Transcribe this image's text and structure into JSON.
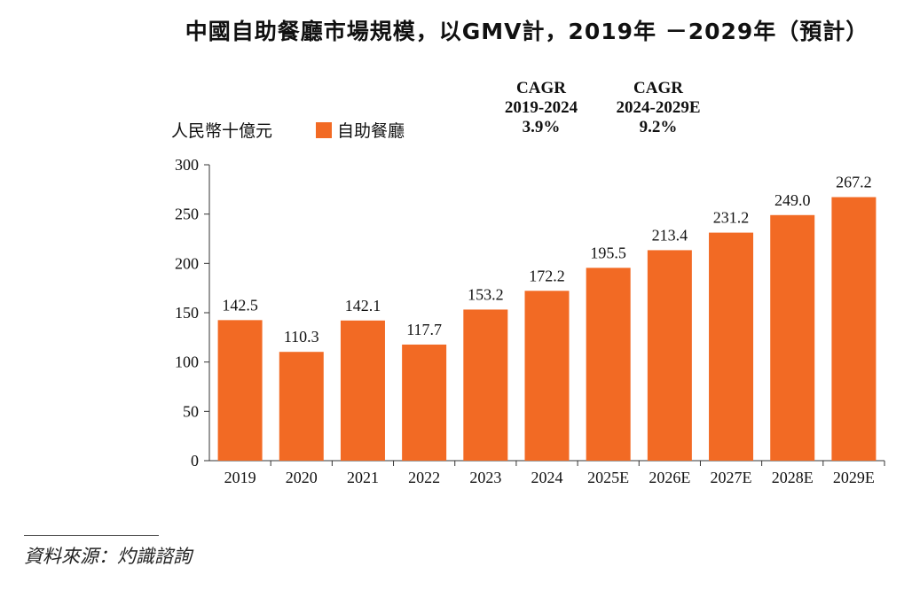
{
  "chart_data": {
    "type": "bar",
    "title": "中國自助餐廳市場規模，以GMV計，2019年 －2029年（預計）",
    "ylabel": "人民幣十億元",
    "legend": [
      "自助餐廳"
    ],
    "legend_placement": "top-left",
    "categories": [
      "2019",
      "2020",
      "2021",
      "2022",
      "2023",
      "2024",
      "2025E",
      "2026E",
      "2027E",
      "2028E",
      "2029E"
    ],
    "values": [
      142.5,
      110.3,
      142.1,
      117.7,
      153.2,
      172.2,
      195.5,
      213.4,
      231.2,
      249.0,
      267.2
    ],
    "value_labels": [
      "142.5",
      "110.3",
      "142.1",
      "117.7",
      "153.2",
      "172.2",
      "195.5",
      "213.4",
      "231.2",
      "249.0",
      "267.2"
    ],
    "ylim": [
      0,
      300
    ],
    "yticks": [
      0,
      50,
      100,
      150,
      200,
      250,
      300
    ],
    "grid": false,
    "bar_color": "#F26A24",
    "annotations": [
      {
        "label": "CAGR",
        "period": "2019-2024",
        "value": "3.9%"
      },
      {
        "label": "CAGR",
        "period": "2024-2029E",
        "value": "9.2%"
      }
    ]
  },
  "source": "資料來源：灼識諮詢"
}
